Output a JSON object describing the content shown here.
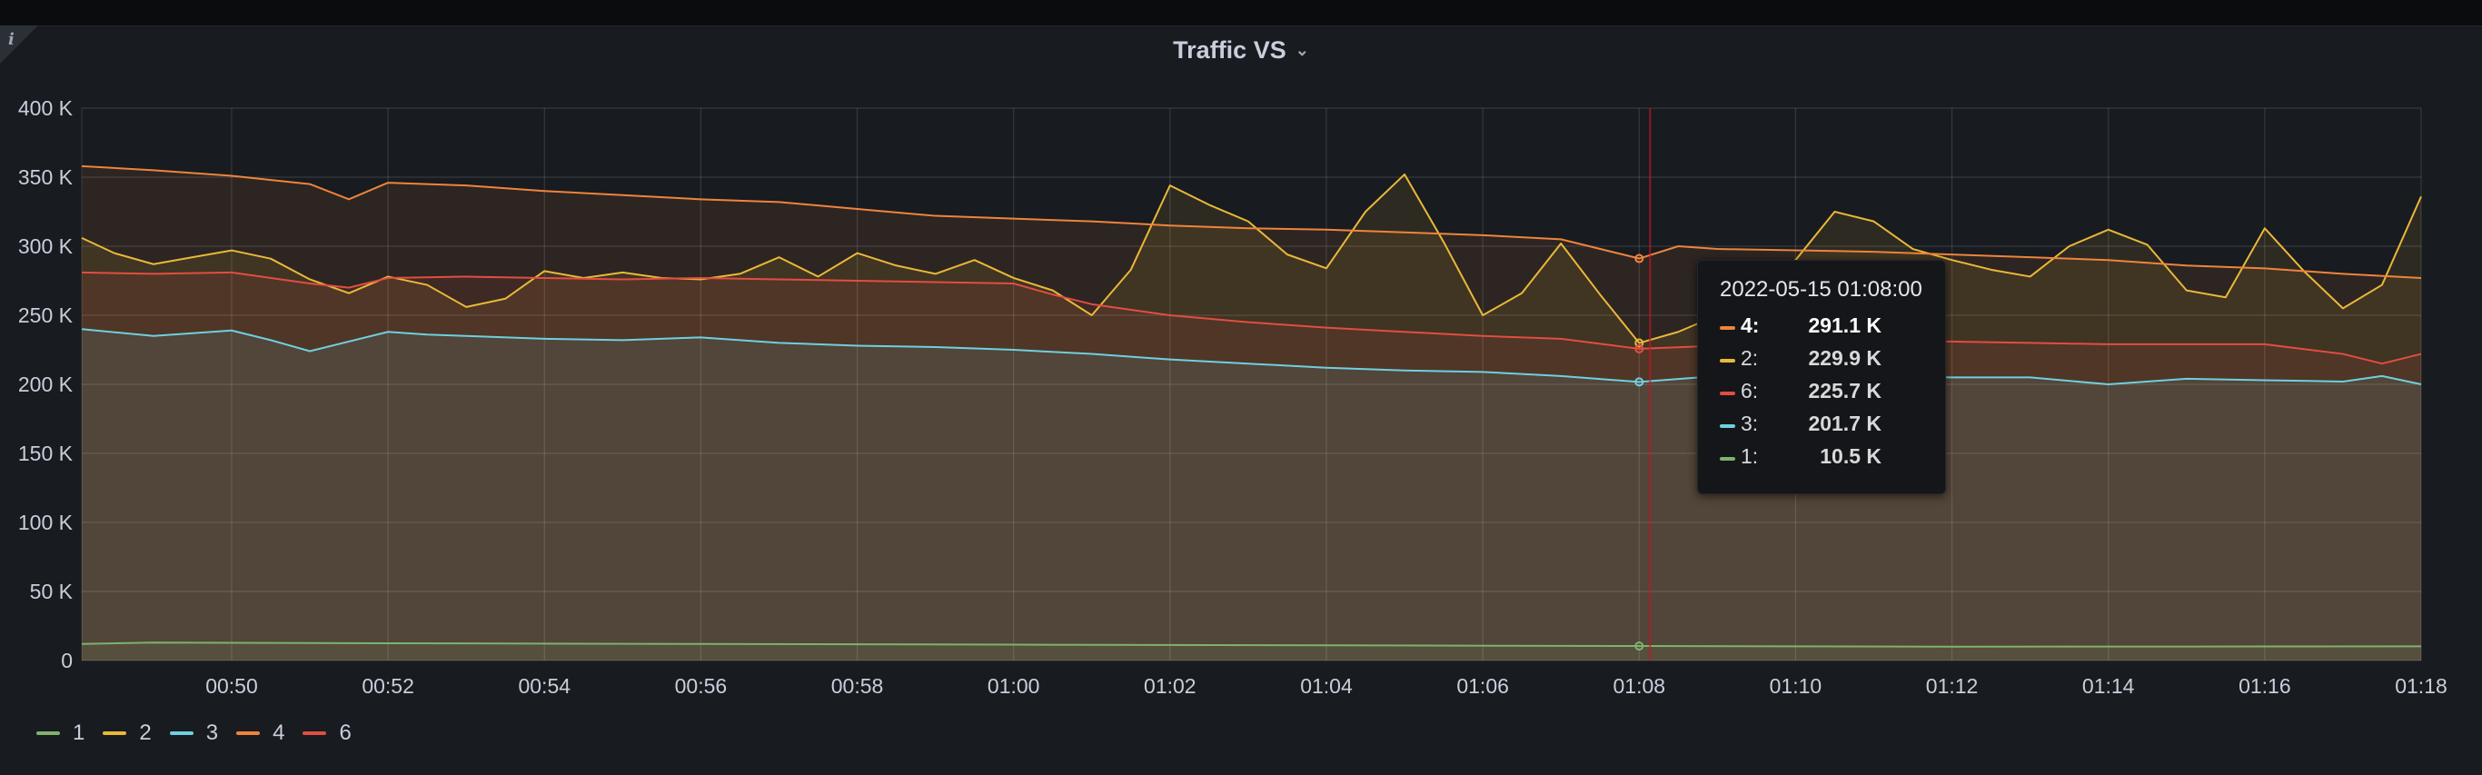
{
  "panel": {
    "title": "Traffic VS",
    "info_icon": "info-icon",
    "menu_icon": "chevron-down-icon"
  },
  "chart_data": {
    "type": "area",
    "title": "Traffic VS",
    "xlabel": "",
    "ylabel": "",
    "x_range": [
      "00:48:05",
      "01:18:00"
    ],
    "x_ticks": [
      "00:50",
      "00:52",
      "00:54",
      "00:56",
      "00:58",
      "01:00",
      "01:02",
      "01:04",
      "01:06",
      "01:08",
      "01:10",
      "01:12",
      "01:14",
      "01:16",
      "01:18"
    ],
    "ylim": [
      0,
      400000
    ],
    "y_ticks": [
      "0",
      "50 K",
      "100 K",
      "150 K",
      "200 K",
      "250 K",
      "300 K",
      "350 K",
      "400 K"
    ],
    "grid": true,
    "legend_position": "bottom-left",
    "hover_time": "01:08:00",
    "series": [
      {
        "name": "1",
        "color": "#7eb26d",
        "points": [
          [
            "00:48:05",
            12000
          ],
          [
            "00:49:00",
            13000
          ],
          [
            "00:52:00",
            12500
          ],
          [
            "00:56:00",
            12000
          ],
          [
            "01:00:00",
            11500
          ],
          [
            "01:04:00",
            11000
          ],
          [
            "01:08:00",
            10500
          ],
          [
            "01:12:00",
            10000
          ],
          [
            "01:16:00",
            10200
          ],
          [
            "01:18:00",
            10300
          ]
        ]
      },
      {
        "name": "2",
        "color": "#eab839",
        "points": [
          [
            "00:48:05",
            306000
          ],
          [
            "00:48:30",
            295000
          ],
          [
            "00:49:00",
            287000
          ],
          [
            "00:49:30",
            292000
          ],
          [
            "00:50:00",
            297000
          ],
          [
            "00:50:30",
            291000
          ],
          [
            "00:51:00",
            276000
          ],
          [
            "00:51:30",
            266000
          ],
          [
            "00:52:00",
            278000
          ],
          [
            "00:52:30",
            272000
          ],
          [
            "00:53:00",
            256000
          ],
          [
            "00:53:30",
            262000
          ],
          [
            "00:54:00",
            282000
          ],
          [
            "00:54:30",
            277000
          ],
          [
            "00:55:00",
            281000
          ],
          [
            "00:55:30",
            277000
          ],
          [
            "00:56:00",
            276000
          ],
          [
            "00:56:30",
            280000
          ],
          [
            "00:57:00",
            292000
          ],
          [
            "00:57:30",
            278000
          ],
          [
            "00:58:00",
            295000
          ],
          [
            "00:58:30",
            286000
          ],
          [
            "00:59:00",
            280000
          ],
          [
            "00:59:30",
            290000
          ],
          [
            "01:00:00",
            277000
          ],
          [
            "01:00:30",
            268000
          ],
          [
            "01:01:00",
            250000
          ],
          [
            "01:01:30",
            283000
          ],
          [
            "01:02:00",
            344000
          ],
          [
            "01:02:30",
            330000
          ],
          [
            "01:03:00",
            318000
          ],
          [
            "01:03:30",
            294000
          ],
          [
            "01:04:00",
            284000
          ],
          [
            "01:04:30",
            325000
          ],
          [
            "01:05:00",
            352000
          ],
          [
            "01:05:30",
            303000
          ],
          [
            "01:06:00",
            250000
          ],
          [
            "01:06:30",
            266000
          ],
          [
            "01:07:00",
            302000
          ],
          [
            "01:07:30",
            265000
          ],
          [
            "01:08:00",
            229900
          ],
          [
            "01:08:30",
            238000
          ],
          [
            "01:09:00",
            250000
          ],
          [
            "01:09:30",
            266000
          ],
          [
            "01:10:00",
            290000
          ],
          [
            "01:10:30",
            325000
          ],
          [
            "01:11:00",
            318000
          ],
          [
            "01:11:30",
            298000
          ],
          [
            "01:12:00",
            290000
          ],
          [
            "01:12:30",
            283000
          ],
          [
            "01:13:00",
            278000
          ],
          [
            "01:13:30",
            300000
          ],
          [
            "01:14:00",
            312000
          ],
          [
            "01:14:30",
            301000
          ],
          [
            "01:15:00",
            268000
          ],
          [
            "01:15:30",
            263000
          ],
          [
            "01:16:00",
            313000
          ],
          [
            "01:16:30",
            282000
          ],
          [
            "01:17:00",
            255000
          ],
          [
            "01:17:30",
            272000
          ],
          [
            "01:18:00",
            336000
          ]
        ]
      },
      {
        "name": "3",
        "color": "#6ed0e0",
        "points": [
          [
            "00:48:05",
            240000
          ],
          [
            "00:49:00",
            235000
          ],
          [
            "00:50:00",
            239000
          ],
          [
            "00:50:30",
            232000
          ],
          [
            "00:51:00",
            224000
          ],
          [
            "00:52:00",
            238000
          ],
          [
            "00:52:30",
            236000
          ],
          [
            "00:53:00",
            235000
          ],
          [
            "00:54:00",
            233000
          ],
          [
            "00:55:00",
            232000
          ],
          [
            "00:56:00",
            234000
          ],
          [
            "00:57:00",
            230000
          ],
          [
            "00:58:00",
            228000
          ],
          [
            "00:59:00",
            227000
          ],
          [
            "01:00:00",
            225000
          ],
          [
            "01:01:00",
            222000
          ],
          [
            "01:02:00",
            218000
          ],
          [
            "01:03:00",
            215000
          ],
          [
            "01:04:00",
            212000
          ],
          [
            "01:05:00",
            210000
          ],
          [
            "01:06:00",
            209000
          ],
          [
            "01:07:00",
            206000
          ],
          [
            "01:08:00",
            201700
          ],
          [
            "01:09:00",
            206000
          ],
          [
            "01:10:00",
            208000
          ],
          [
            "01:11:00",
            206000
          ],
          [
            "01:12:00",
            205000
          ],
          [
            "01:13:00",
            205000
          ],
          [
            "01:14:00",
            200000
          ],
          [
            "01:15:00",
            204000
          ],
          [
            "01:16:00",
            203000
          ],
          [
            "01:17:00",
            202000
          ],
          [
            "01:17:30",
            206000
          ],
          [
            "01:18:00",
            200000
          ]
        ]
      },
      {
        "name": "4",
        "color": "#ef843c",
        "points": [
          [
            "00:48:05",
            358000
          ],
          [
            "00:49:00",
            355000
          ],
          [
            "00:50:00",
            351000
          ],
          [
            "00:51:00",
            345000
          ],
          [
            "00:51:30",
            334000
          ],
          [
            "00:52:00",
            346000
          ],
          [
            "00:53:00",
            344000
          ],
          [
            "00:54:00",
            340000
          ],
          [
            "00:55:00",
            337000
          ],
          [
            "00:56:00",
            334000
          ],
          [
            "00:57:00",
            332000
          ],
          [
            "00:58:00",
            327000
          ],
          [
            "00:59:00",
            322000
          ],
          [
            "01:00:00",
            320000
          ],
          [
            "01:01:00",
            318000
          ],
          [
            "01:02:00",
            315000
          ],
          [
            "01:03:00",
            313000
          ],
          [
            "01:04:00",
            312000
          ],
          [
            "01:05:00",
            310000
          ],
          [
            "01:06:00",
            308000
          ],
          [
            "01:07:00",
            305000
          ],
          [
            "01:08:00",
            291100
          ],
          [
            "01:08:30",
            300000
          ],
          [
            "01:09:00",
            298000
          ],
          [
            "01:10:00",
            297000
          ],
          [
            "01:11:00",
            296000
          ],
          [
            "01:12:00",
            294000
          ],
          [
            "01:13:00",
            292000
          ],
          [
            "01:14:00",
            290000
          ],
          [
            "01:15:00",
            286000
          ],
          [
            "01:16:00",
            284000
          ],
          [
            "01:17:00",
            280000
          ],
          [
            "01:18:00",
            277000
          ]
        ]
      },
      {
        "name": "6",
        "color": "#e24d42",
        "points": [
          [
            "00:48:05",
            281000
          ],
          [
            "00:49:00",
            280000
          ],
          [
            "00:50:00",
            281000
          ],
          [
            "00:51:00",
            273000
          ],
          [
            "00:51:30",
            270000
          ],
          [
            "00:52:00",
            277000
          ],
          [
            "00:53:00",
            278000
          ],
          [
            "00:54:00",
            277000
          ],
          [
            "00:55:00",
            276000
          ],
          [
            "00:56:00",
            277000
          ],
          [
            "00:57:00",
            276000
          ],
          [
            "00:58:00",
            275000
          ],
          [
            "00:59:00",
            274000
          ],
          [
            "01:00:00",
            273000
          ],
          [
            "01:00:30",
            265000
          ],
          [
            "01:01:00",
            258000
          ],
          [
            "01:02:00",
            250000
          ],
          [
            "01:03:00",
            245000
          ],
          [
            "01:04:00",
            241000
          ],
          [
            "01:05:00",
            238000
          ],
          [
            "01:06:00",
            235000
          ],
          [
            "01:07:00",
            233000
          ],
          [
            "01:08:00",
            225700
          ],
          [
            "01:09:00",
            228000
          ],
          [
            "01:10:00",
            229000
          ],
          [
            "01:11:00",
            230000
          ],
          [
            "01:12:00",
            231000
          ],
          [
            "01:13:00",
            230000
          ],
          [
            "01:14:00",
            229000
          ],
          [
            "01:15:00",
            229000
          ],
          [
            "01:16:00",
            229000
          ],
          [
            "01:17:00",
            222000
          ],
          [
            "01:17:30",
            215000
          ],
          [
            "01:18:00",
            222000
          ]
        ]
      }
    ]
  },
  "tooltip": {
    "time": "2022-05-15 01:08:00",
    "rows": [
      {
        "name": "4:",
        "value": "291.1 K",
        "color": "#ef843c",
        "highlight": true
      },
      {
        "name": "2:",
        "value": "229.9 K",
        "color": "#eab839",
        "highlight": false
      },
      {
        "name": "6:",
        "value": "225.7 K",
        "color": "#e24d42",
        "highlight": false
      },
      {
        "name": "3:",
        "value": "201.7 K",
        "color": "#6ed0e0",
        "highlight": false
      },
      {
        "name": "1:",
        "value": "10.5 K",
        "color": "#7eb26d",
        "highlight": false
      }
    ]
  },
  "legend": [
    {
      "name": "1",
      "color": "#7eb26d"
    },
    {
      "name": "2",
      "color": "#eab839"
    },
    {
      "name": "3",
      "color": "#6ed0e0"
    },
    {
      "name": "4",
      "color": "#ef843c"
    },
    {
      "name": "6",
      "color": "#e24d42"
    }
  ]
}
